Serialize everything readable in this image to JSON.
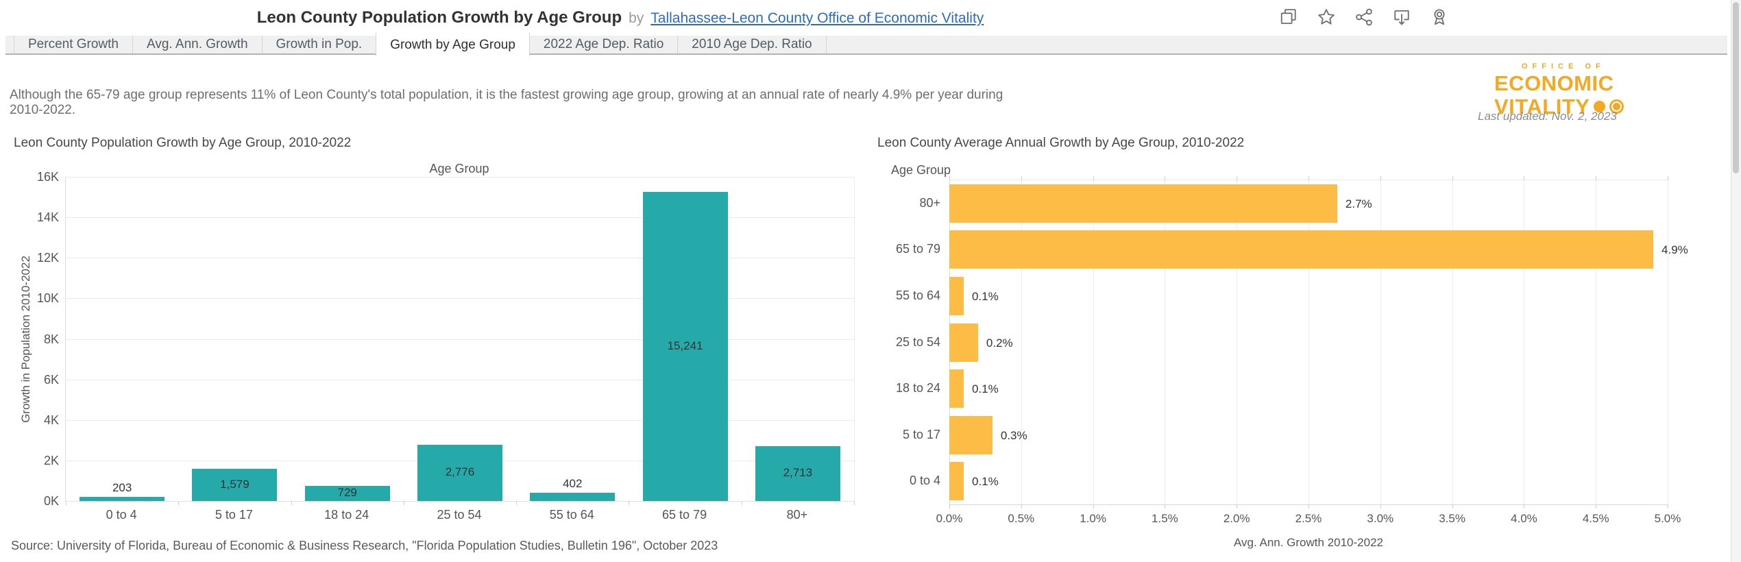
{
  "header": {
    "title": "Leon County Population Growth by Age Group",
    "by": "by",
    "author": "Tallahassee-Leon County Office of Economic Vitality"
  },
  "tabs": [
    {
      "label": "Percent Growth",
      "active": false
    },
    {
      "label": "Avg. Ann. Growth",
      "active": false
    },
    {
      "label": "Growth in Pop.",
      "active": false
    },
    {
      "label": "Growth by Age Group",
      "active": true
    },
    {
      "label": "2022 Age Dep. Ratio",
      "active": false
    },
    {
      "label": "2010 Age Dep. Ratio",
      "active": false
    }
  ],
  "summary": "Although the 65-79 age group represents 11% of Leon County's total population, it is the fastest growing age group, growing at an annual rate of nearly 4.9% per year during 2010-2022.",
  "logo": {
    "line1": "OFFICE OF",
    "line2": "ECONOMIC",
    "line3": "VITALITY",
    "color": "#f5a922"
  },
  "last_updated": "Last updated: Nov. 2, 2023",
  "source": "Source: University of Florida, Bureau of Economic & Business Research, \"Florida Population Studies, Bulletin 196\", October 2023",
  "chart_data": [
    {
      "type": "bar",
      "title": "Leon County Population Growth by Age Group, 2010-2022",
      "field_label": "Age Group",
      "categories": [
        "0 to 4",
        "5 to 17",
        "18 to 24",
        "25 to 54",
        "55 to 64",
        "65 to 79",
        "80+"
      ],
      "values": [
        203,
        1579,
        729,
        2776,
        402,
        15241,
        2713
      ],
      "labels": [
        "203",
        "1,579",
        "729",
        "2,776",
        "402",
        "15,241",
        "2,713"
      ],
      "xlabel": "Age Group",
      "ylabel": "Growth in Population 2010-2022",
      "ylim": [
        0,
        16000
      ],
      "yticks": [
        "0K",
        "2K",
        "4K",
        "6K",
        "8K",
        "10K",
        "12K",
        "14K",
        "16K"
      ],
      "bar_color": "#26a9a9",
      "grid": true,
      "legend": "none"
    },
    {
      "type": "bar",
      "orientation": "horizontal",
      "title": "Leon County Average Annual Growth by Age Group, 2010-2022",
      "field_label": "Age Group",
      "categories": [
        "80+",
        "65 to 79",
        "55 to 64",
        "25 to 54",
        "18 to 24",
        "5 to 17",
        "0 to 4"
      ],
      "values": [
        2.7,
        4.9,
        0.1,
        0.2,
        0.1,
        0.3,
        0.1
      ],
      "labels": [
        "2.7%",
        "4.9%",
        "0.1%",
        "0.2%",
        "0.1%",
        "0.3%",
        "0.1%"
      ],
      "xlabel": "Avg. Ann. Growth 2010-2022",
      "xlim": [
        0,
        5
      ],
      "xticks": [
        "0.0%",
        "0.5%",
        "1.0%",
        "1.5%",
        "2.0%",
        "2.5%",
        "3.0%",
        "3.5%",
        "4.0%",
        "4.5%",
        "5.0%"
      ],
      "bar_color": "#fcbc45",
      "grid": true,
      "legend": "none"
    }
  ],
  "icons": [
    "duplicate",
    "favorite-star",
    "share",
    "download",
    "author-badge"
  ]
}
